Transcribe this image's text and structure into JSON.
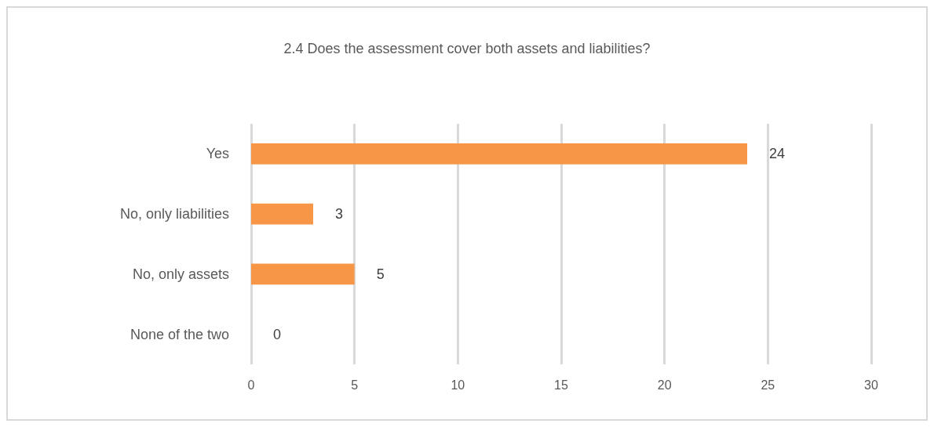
{
  "chart_data": {
    "type": "bar",
    "orientation": "horizontal",
    "title": "2.4 Does the assessment cover both assets and liabilities?",
    "categories": [
      "Yes",
      "No, only liabilities",
      "No, only assets",
      "None of the two"
    ],
    "values": [
      24,
      3,
      5,
      0
    ],
    "color": "#f79646",
    "xlim": [
      0,
      30
    ],
    "xticks": [
      0,
      5,
      10,
      15,
      20,
      25,
      30
    ],
    "grid": "x",
    "data_labels": true
  }
}
